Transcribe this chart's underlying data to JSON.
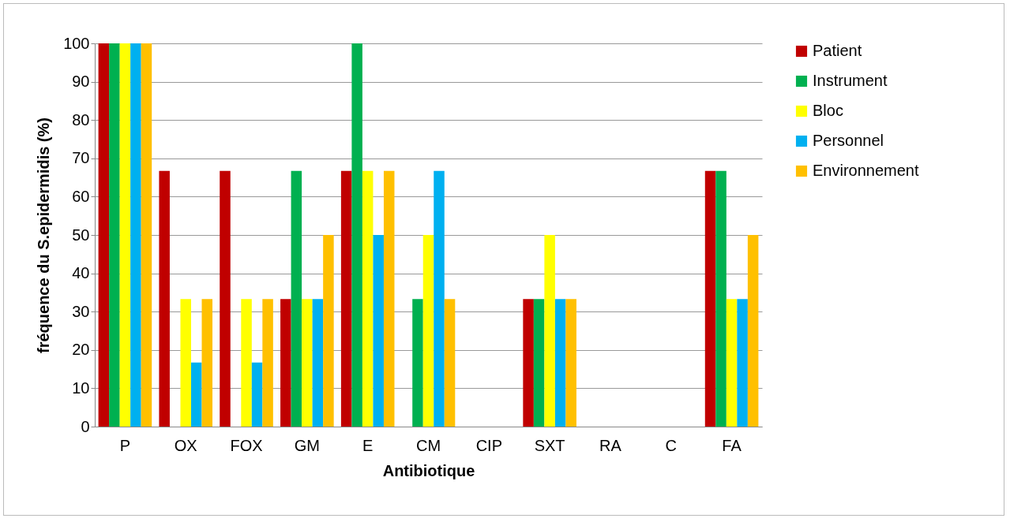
{
  "chart_data": {
    "type": "bar",
    "xlabel": "Antibiotique",
    "ylabel": "fréquence du S.epidermidis (%)",
    "categories": [
      "P",
      "OX",
      "FOX",
      "GM",
      "E",
      "CM",
      "CIP",
      "SXT",
      "RA",
      "C",
      "FA"
    ],
    "series": [
      {
        "name": "Patient",
        "color": "#c00000",
        "values": [
          100,
          66.7,
          66.7,
          33.3,
          66.7,
          0,
          0,
          33.3,
          0,
          0,
          66.7
        ]
      },
      {
        "name": "Instrument",
        "color": "#00b050",
        "values": [
          100,
          0,
          0,
          66.7,
          100,
          33.3,
          0,
          33.3,
          0,
          0,
          66.7
        ]
      },
      {
        "name": "Bloc",
        "color": "#ffff00",
        "values": [
          100,
          33.3,
          33.3,
          33.3,
          66.7,
          50,
          0,
          50,
          0,
          0,
          33.3
        ]
      },
      {
        "name": "Personnel",
        "color": "#00b0f0",
        "values": [
          100,
          16.7,
          16.7,
          33.3,
          50,
          66.7,
          0,
          33.3,
          0,
          0,
          33.3
        ]
      },
      {
        "name": "Environnement",
        "color": "#ffc000",
        "values": [
          100,
          33.3,
          33.3,
          50,
          66.7,
          33.3,
          0,
          33.3,
          0,
          0,
          50
        ]
      }
    ],
    "ylim": [
      0,
      100
    ],
    "yticks": [
      0,
      10,
      20,
      30,
      40,
      50,
      60,
      70,
      80,
      90,
      100
    ],
    "grid": "y",
    "legend": "right"
  }
}
